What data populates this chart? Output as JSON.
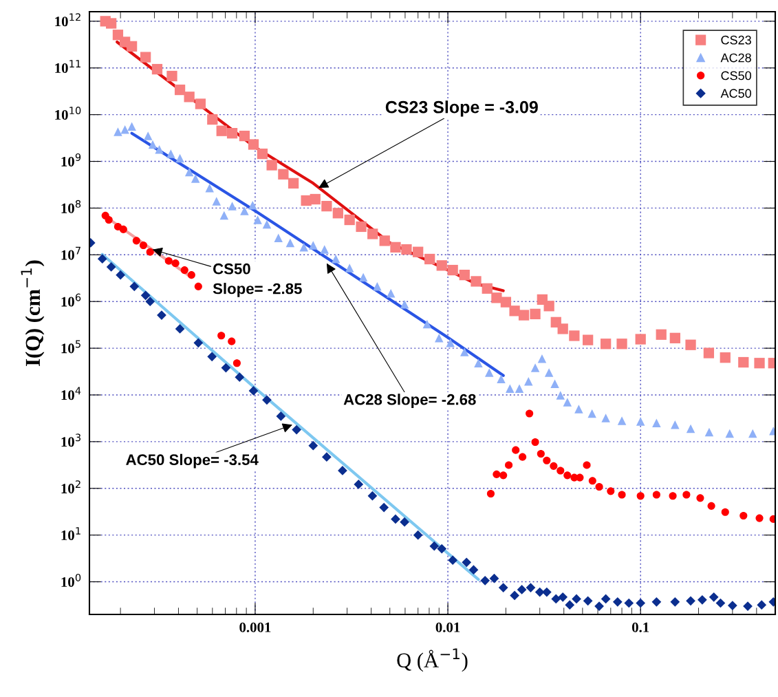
{
  "chart_data": {
    "type": "scatter",
    "xlabel": "Q (Å$^{−1}$)",
    "ylabel": "I(Q) (cm$^{−1}$)",
    "log": "xy",
    "xlim": [
      0.000138,
      0.5
    ],
    "ylim": [
      0.2,
      1600000000000.0
    ],
    "xticks": [
      0.001,
      0.01,
      0.1
    ],
    "yticks": [
      {
        "value": 1,
        "label": "10$^{0}$"
      },
      {
        "value": 10,
        "label": "10$^{1}$"
      },
      {
        "value": 100,
        "label": "10$^{2}$"
      },
      {
        "value": 1000,
        "label": "10$^{3}$"
      },
      {
        "value": 10000,
        "label": "10$^{4}$"
      },
      {
        "value": 100000,
        "label": "10$^{5}$"
      },
      {
        "value": 1000000,
        "label": "10$^{6}$"
      },
      {
        "value": 10000000,
        "label": "10$^{7}$"
      },
      {
        "value": 100000000,
        "label": "10$^{8}$"
      },
      {
        "value": 1000000000,
        "label": "10$^{9}$"
      },
      {
        "value": 10000000000,
        "label": "10$^{10}$"
      },
      {
        "value": 100000000000,
        "label": "10$^{11}$"
      },
      {
        "value": 1000000000000,
        "label": "10$^{12}$"
      }
    ],
    "grid": true,
    "legend": "top right",
    "series": [
      {
        "name": "CS23",
        "color": "#f77f7f",
        "marker": "square",
        "x": [
          0.000167,
          0.000179,
          0.000194,
          0.000211,
          0.000229,
          0.00027,
          0.00031,
          0.00037,
          0.000407,
          0.000455,
          0.00052,
          0.0006,
          0.00067,
          0.00076,
          0.00088,
          0.00098,
          0.00109,
          0.00122,
          0.0014,
          0.00158,
          0.00184,
          0.00205,
          0.00235,
          0.00269,
          0.00309,
          0.00355,
          0.00407,
          0.0047,
          0.00535,
          0.0061,
          0.007,
          0.00805,
          0.0093,
          0.0106,
          0.0122,
          0.014,
          0.016,
          0.0179,
          0.02,
          0.0222,
          0.0248,
          0.0284,
          0.0309,
          0.0335,
          0.0364,
          0.0395,
          0.0453,
          0.0533,
          0.066,
          0.08,
          0.1,
          0.128,
          0.151,
          0.182,
          0.226,
          0.275,
          0.342,
          0.414,
          0.489
        ],
        "values": [
          1000000000000.0,
          900000000000.0,
          510000000000.0,
          360000000000.0,
          290000000000.0,
          170000000000.0,
          94000000000.0,
          67000000000.0,
          34000000000.0,
          24000000000.0,
          17000000000.0,
          7900000000.0,
          4500000000.0,
          4000000000.0,
          3500000000.0,
          2300000000.0,
          1450000000.0,
          830000000.0,
          530000000.0,
          340000000.0,
          145000000.0,
          155000000.0,
          110000000.0,
          78000000.0,
          56000000.0,
          40000000.0,
          28000000.0,
          20000000.0,
          14500000.0,
          13000000.0,
          11500000.0,
          8100000.0,
          5900000.0,
          4700000.0,
          3700000.0,
          2700000.0,
          1900000.0,
          1200000.0,
          970000.0,
          630000.0,
          510000.0,
          540000.0,
          1100000.0,
          800000.0,
          360000.0,
          260000.0,
          185000.0,
          150000.0,
          124000.0,
          124000.0,
          156000.0,
          196000.0,
          165000.0,
          118000.0,
          79000.0,
          63000.0,
          50000.0,
          48000.0,
          48000.0
        ]
      },
      {
        "name": "AC28",
        "color": "#8fb0f7",
        "marker": "triangle",
        "x": [
          0.000194,
          0.000211,
          0.000229,
          0.000278,
          0.000294,
          0.000318,
          0.000365,
          0.000407,
          0.000455,
          0.00049,
          0.00058,
          0.00063,
          0.00069,
          0.00076,
          0.00088,
          0.00097,
          0.00103,
          0.00115,
          0.00132,
          0.00152,
          0.00179,
          0.002,
          0.00229,
          0.00262,
          0.00309,
          0.00364,
          0.0043,
          0.00506,
          0.00596,
          0.0078,
          0.009,
          0.0103,
          0.0122,
          0.0144,
          0.0164,
          0.0189,
          0.021,
          0.0235,
          0.0262,
          0.0284,
          0.0308,
          0.0335,
          0.0359,
          0.0384,
          0.0417,
          0.0478,
          0.056,
          0.066,
          0.08,
          0.1,
          0.121,
          0.151,
          0.182,
          0.227,
          0.29,
          0.382,
          0.489
        ],
        "values": [
          4300000000.0,
          4800000000.0,
          5600000000.0,
          3500000000.0,
          2300000000.0,
          1800000000.0,
          1450000000.0,
          1170000000.0,
          590000000.0,
          430000000.0,
          270000000.0,
          140000000.0,
          70000000.0,
          110000000.0,
          87000000.0,
          115000000.0,
          56000000.0,
          45000000.0,
          23000000.0,
          18000000.0,
          14500000.0,
          16000000.0,
          13000000.0,
          8200000.0,
          5200000.0,
          3300000.0,
          2100000.0,
          1500000.0,
          870000.0,
          330000.0,
          165000.0,
          130000.0,
          83000.0,
          48000.0,
          30000.0,
          22000.0,
          13700.0,
          13700.0,
          19500.0,
          38000.0,
          60000.0,
          30000.0,
          17400.0,
          9800.0,
          7000.0,
          5000.0,
          4000.0,
          3200.0,
          2800.0,
          2700.0,
          2500.0,
          2300.0,
          1900.0,
          1600.0,
          1500.0,
          1500.0,
          1700.0
        ]
      },
      {
        "name": "CS50",
        "color": "#ff0000",
        "marker": "circle",
        "x": [
          0.000167,
          0.000174,
          0.000194,
          0.000207,
          0.000242,
          0.000263,
          0.000285,
          0.000356,
          0.000386,
          0.00043,
          0.000467,
          0.000507,
          0.000667,
          0.000755,
          0.000804,
          0.0167,
          0.0179,
          0.0194,
          0.0207,
          0.0225,
          0.0244,
          0.0265,
          0.0284,
          0.0304,
          0.0326,
          0.0354,
          0.0384,
          0.0417,
          0.0453,
          0.0484,
          0.0526,
          0.0563,
          0.061,
          0.07,
          0.08,
          0.1,
          0.121,
          0.147,
          0.173,
          0.204,
          0.233,
          0.275,
          0.342,
          0.414,
          0.489
        ],
        "values": [
          69000000.0,
          56000000.0,
          40000000.0,
          35000000.0,
          20000000.0,
          16000000.0,
          11500000.0,
          7400000.0,
          6600000.0,
          4700000.0,
          3700000.0,
          2100000.0,
          186000.0,
          140000.0,
          48000.0,
          77,
          200,
          190,
          315,
          660,
          470,
          4000,
          980,
          550,
          395,
          300,
          240,
          190,
          170,
          170,
          315,
          145,
          108,
          87,
          73,
          69,
          73,
          69,
          73,
          62,
          42,
          31,
          26,
          23,
          22
        ]
      },
      {
        "name": "AC50",
        "color": "#0b2e8f",
        "marker": "diamond",
        "x": [
          0.00014,
          0.000161,
          0.000179,
          0.0002,
          0.000236,
          0.00027,
          0.000285,
          0.000327,
          0.000407,
          0.000507,
          0.000597,
          0.000705,
          0.00083,
          0.00098,
          0.00115,
          0.00136,
          0.00164,
          0.002,
          0.00235,
          0.00284,
          0.00344,
          0.00406,
          0.00466,
          0.00535,
          0.00596,
          0.007,
          0.0085,
          0.0093,
          0.0106,
          0.0125,
          0.0136,
          0.0156,
          0.0174,
          0.0194,
          0.0222,
          0.0242,
          0.0269,
          0.03,
          0.0326,
          0.0364,
          0.0395,
          0.0429,
          0.0465,
          0.0533,
          0.061,
          0.066,
          0.076,
          0.087,
          0.1,
          0.121,
          0.151,
          0.182,
          0.209,
          0.24,
          0.26,
          0.3,
          0.36,
          0.425,
          0.489
        ],
        "values": [
          18000000.0,
          8200000.0,
          5500000.0,
          3700000.0,
          2100000.0,
          1350000.0,
          1000000.0,
          510000.0,
          260000.0,
          130000.0,
          66000.0,
          38000.0,
          24000.0,
          12300.0,
          7800.0,
          3500.0,
          1800.0,
          820,
          470,
          240,
          122,
          69,
          39,
          22,
          19,
          10,
          5.8,
          5.1,
          2.9,
          2.6,
          1.8,
          1.06,
          1.18,
          0.75,
          0.51,
          0.68,
          0.75,
          0.6,
          0.6,
          0.43,
          0.47,
          0.32,
          0.43,
          0.39,
          0.3,
          0.43,
          0.37,
          0.35,
          0.35,
          0.37,
          0.37,
          0.39,
          0.41,
          0.47,
          0.35,
          0.31,
          0.3,
          0.32,
          0.37
        ]
      },
      {
        "type": "line",
        "color": "#e01010",
        "x": [
          0.000192,
          0.001,
          0.002,
          0.005,
          0.01,
          0.014,
          0.0194
        ],
        "values": [
          360000000000.0,
          2000000000.0,
          340000000.0,
          18000000.0,
          4700000.0,
          2400000.0,
          1700000.0
        ]
      },
      {
        "type": "line",
        "color": "#2a55e5",
        "x": [
          0.000229,
          0.001,
          0.01,
          0.0194
        ],
        "values": [
          4000000000.0,
          87000000.0,
          170000.0,
          26000.0
        ]
      },
      {
        "type": "line",
        "color": "#f4a0a0",
        "x": [
          0.000167,
          0.000467
        ],
        "values": [
          66000000.0,
          3300000.0
        ]
      },
      {
        "type": "line",
        "color": "#7ec8f0",
        "x": [
          0.000161,
          0.001,
          0.0144
        ],
        "values": [
          10200000.0,
          14000.0,
          1.12
        ]
      }
    ],
    "annotations": [
      {
        "text": "CS23 Slope = -3.09",
        "x": 0.00213,
        "y": 270000000.0
      },
      {
        "text": "CS50\nSlope= -2.85",
        "x": 0.000293,
        "y": 13000000.0
      },
      {
        "text": "AC28 Slope= -2.68",
        "x": 0.00235,
        "y": 6600000.0
      },
      {
        "text": "AC50 Slope= -3.54",
        "x": 0.00156,
        "y": 2300
      }
    ]
  }
}
